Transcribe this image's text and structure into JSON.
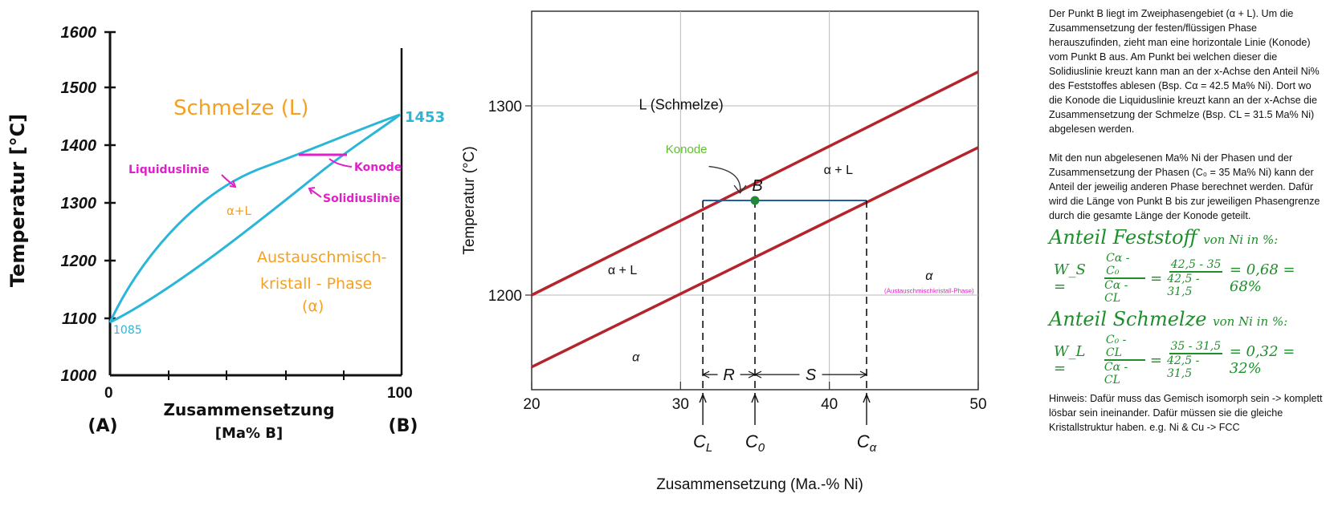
{
  "left_diagram": {
    "y_axis_label": "Temperatur [°C]",
    "y_ticks": [
      "1600",
      "1500",
      "1400",
      "1300",
      "1200",
      "1100",
      "1000"
    ],
    "x_ticks": [
      "0",
      "100"
    ],
    "x_axis_label_line1": "Zusammensetzung",
    "x_axis_label_line2": "[Ma% B]",
    "component_a": "(A)",
    "component_b": "(B)",
    "melt_label": "Schmelze (L)",
    "two_phase_label": "α+L",
    "solid_label_line1": "Austauschmisch-",
    "solid_label_line2": "kristall - Phase",
    "solid_label_line3": "(α)",
    "liquidus_label": "Liquiduslinie",
    "solidus_label": "Solidiuslinie",
    "tieline_label": "Konode",
    "melting_point_a": "1085",
    "melting_point_b": "1453",
    "colors": {
      "curves": "#29b6d8",
      "annotation": "#e020c8",
      "regions": "#f5a020"
    }
  },
  "chart_data": {
    "type": "line",
    "title": "",
    "xlabel": "Zusammensetzung (Ma.-% Ni)",
    "ylabel": "Temperatur (°C)",
    "xlim": [
      20,
      50
    ],
    "ylim": [
      1150,
      1350
    ],
    "x_ticks": [
      "20",
      "30",
      "40",
      "50"
    ],
    "y_ticks": [
      "1200",
      "1300"
    ],
    "grid": true,
    "series": [
      {
        "x": [
          20,
          50
        ],
        "y": [
          1200,
          1318
        ]
      },
      {
        "x": [
          20,
          50
        ],
        "y": [
          1162,
          1278
        ]
      }
    ],
    "tie_line": {
      "x": [
        31.5,
        42.5
      ],
      "y": 1250
    },
    "point_B": {
      "x": 35,
      "y": 1250,
      "label": "B"
    },
    "markers": [
      {
        "label": "C_L",
        "x": 31.5
      },
      {
        "label": "C_0",
        "x": 35
      },
      {
        "label": "C_α",
        "x": 42.5
      }
    ],
    "segments": [
      "R",
      "S"
    ],
    "regions": {
      "liquid": "L (Schmelze)",
      "two_phase_upper": "α + L",
      "two_phase_left": "α + L",
      "alpha_lower": "α",
      "alpha_right": "α",
      "alpha_right_note": "(Austauschmischkristall-Phase)"
    },
    "tie_line_label": "Konode",
    "colors": {
      "curve": "#b5242c",
      "tie_line": "#1f5fa8",
      "point": "#1e8a3a",
      "konode_label": "#5fbf2f",
      "note": "#e020c8"
    }
  },
  "explanation": {
    "paragraph1": "Der Punkt B liegt im Zweiphasengebiet (α + L). Um die Zusammensetzung der festen/flüssigen Phase herauszufinden, zieht man eine horizontale Linie (Konode) vom Punkt B aus. Am Punkt bei welchen dieser die Solidiuslinie kreuzt kann man an der x-Achse den Anteil Ni% des Feststoffes ablesen (Bsp. Cα = 42.5 Ma% Ni). Dort wo die Konode die Liquiduslinie kreuzt kann an der x-Achse die Zusammensetzung der Schmelze (Bsp. CL = 31.5 Ma% Ni) abgelesen werden.",
    "paragraph2": "Mit den nun abgelesenen Ma% Ni der Phasen und der Zusammensetzung der Phasen (C₀ = 35 Ma% Ni) kann der Anteil der jeweilig anderen Phase berechnet werden. Dafür wird die Länge von Punkt B bis zur jeweiligen Phasengrenze durch die gesamte Länge der Konode geteilt.",
    "solid_title": "Anteil Feststoff",
    "solid_title_suffix": "von Ni in %:",
    "solid_lhs": "W_S =",
    "solid_frac_num": "Cα - C₀",
    "solid_frac_den": "Cα - CL",
    "solid_eq": "=",
    "solid_num_num": "42,5 - 35",
    "solid_num_den": "42,5 - 31,5",
    "solid_result": "= 0,68 = 68%",
    "melt_title": "Anteil Schmelze",
    "melt_title_suffix": "von Ni in %:",
    "melt_lhs": "W_L =",
    "melt_frac_num": "C₀ - CL",
    "melt_frac_den": "Cα - CL",
    "melt_eq": "=",
    "melt_num_num": "35 - 31,5",
    "melt_num_den": "42,5 - 31,5",
    "melt_result": "= 0,32 = 32%",
    "hint": "Hinweis: Dafür muss das Gemisch isomorph sein -> komplett lösbar sein ineinander. Dafür müssen sie die gleiche Kristallstruktur haben. e.g. Ni & Cu -> FCC"
  }
}
